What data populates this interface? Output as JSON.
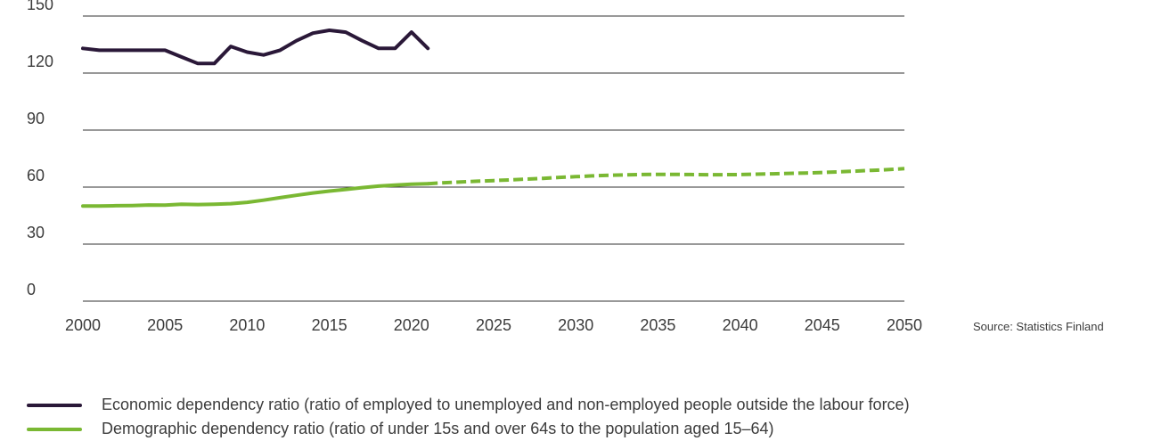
{
  "source": "Source: Statistics Finland",
  "chart_data": {
    "type": "line",
    "xlim": [
      2000,
      2050
    ],
    "ylim": [
      0,
      150
    ],
    "x_ticks": [
      2000,
      2005,
      2010,
      2015,
      2020,
      2025,
      2030,
      2035,
      2040,
      2045,
      2050
    ],
    "y_ticks": [
      0,
      30,
      60,
      90,
      120,
      150
    ],
    "grid": "horizontal",
    "legend_position": "bottom",
    "series": [
      {
        "name": "Economic dependency ratio (ratio of employed to unemployed and non-employed people outside the labour force)",
        "color": "#2a1838",
        "style": "solid",
        "x": [
          2000,
          2001,
          2002,
          2003,
          2004,
          2005,
          2006,
          2007,
          2008,
          2009,
          2010,
          2011,
          2012,
          2013,
          2014,
          2015,
          2016,
          2017,
          2018,
          2019,
          2020,
          2021
        ],
        "y": [
          133,
          132,
          132,
          132,
          132,
          132,
          128.5,
          125,
          125,
          134,
          131,
          129.5,
          132,
          137,
          141,
          142.5,
          141.5,
          137,
          133,
          133,
          141.5,
          133
        ]
      },
      {
        "name": "Demographic dependency ratio (ratio of under 15s and over 64s to the population aged 15–64)",
        "color": "#7ab833",
        "style": "solid-then-dashed",
        "projection_start": 2021,
        "x": [
          2000,
          2001,
          2002,
          2003,
          2004,
          2005,
          2006,
          2007,
          2008,
          2009,
          2010,
          2011,
          2012,
          2013,
          2014,
          2015,
          2016,
          2017,
          2018,
          2019,
          2020,
          2021,
          2022,
          2023,
          2024,
          2025,
          2026,
          2027,
          2028,
          2029,
          2030,
          2031,
          2032,
          2033,
          2034,
          2035,
          2036,
          2037,
          2038,
          2039,
          2040,
          2041,
          2042,
          2043,
          2044,
          2045,
          2046,
          2047,
          2048,
          2049,
          2050
        ],
        "y": [
          50,
          50,
          50.2,
          50.3,
          50.6,
          50.5,
          51,
          50.8,
          51,
          51.3,
          52,
          53.1,
          54.4,
          55.7,
          56.9,
          57.9,
          58.8,
          59.7,
          60.5,
          61.1,
          61.5,
          61.8,
          62.3,
          62.7,
          63.1,
          63.4,
          63.8,
          64.2,
          64.6,
          65.1,
          65.5,
          65.9,
          66.2,
          66.4,
          66.6,
          66.7,
          66.7,
          66.6,
          66.5,
          66.5,
          66.6,
          66.8,
          67,
          67.2,
          67.4,
          67.7,
          68,
          68.4,
          68.8,
          69.2,
          69.7
        ]
      }
    ]
  }
}
